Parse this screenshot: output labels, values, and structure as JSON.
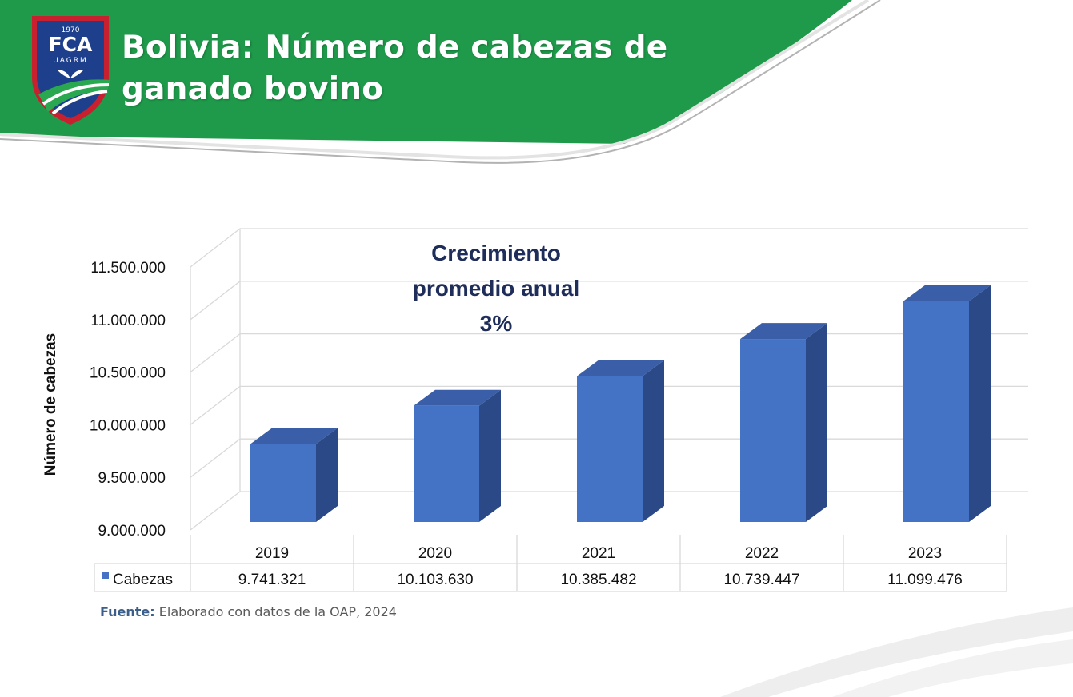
{
  "title": {
    "line1": "Bolivia: Número de cabezas de",
    "line2": "ganado bovino"
  },
  "logo": {
    "year": "1970",
    "acronym": "FCA",
    "university": "UAGRM"
  },
  "colors": {
    "header_green": "#1e9a4a",
    "bar_front": "#4472c4",
    "bar_side": "#2b4986",
    "bar_top": "#3a5fa8",
    "annotation": "#1f2d5a",
    "logo_blue": "#1d3f8c",
    "logo_red": "#c8202e"
  },
  "annotation": {
    "line1": "Crecimiento",
    "line2": "promedio anual",
    "line3": "3%"
  },
  "source": {
    "label": "Fuente:",
    "text": "Elaborado con datos de la OAP, 2024"
  },
  "chart_data": {
    "type": "bar",
    "subtype": "3d-column-with-data-table",
    "categories": [
      "2019",
      "2020",
      "2021",
      "2022",
      "2023"
    ],
    "series": [
      {
        "name": "Cabezas",
        "values": [
          9741321,
          10103630,
          10385482,
          10739447,
          11099476
        ]
      }
    ],
    "value_labels": [
      "9.741.321",
      "10.103.630",
      "10.385.482",
      "10.739.447",
      "11.099.476"
    ],
    "ylabel": "Número de cabezas",
    "ylim": [
      9000000,
      11500000
    ],
    "yticks": [
      9000000,
      9500000,
      10000000,
      10500000,
      11000000,
      11500000
    ],
    "ytick_labels": [
      "9.000.000",
      "9.500.000",
      "10.000.000",
      "10.500.000",
      "11.000.000",
      "11.500.000"
    ],
    "grid": true,
    "legend": "data-table"
  }
}
